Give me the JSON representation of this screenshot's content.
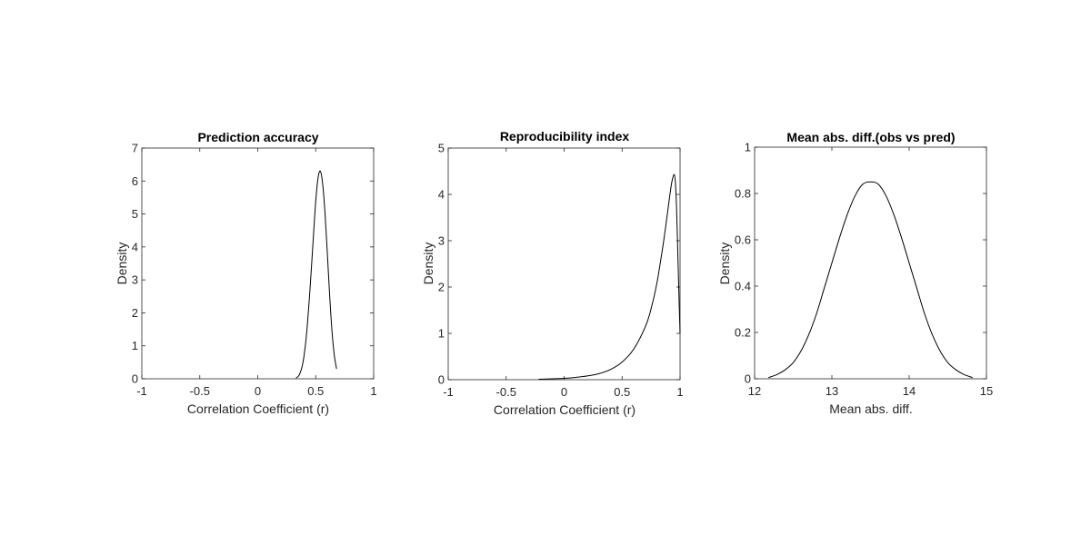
{
  "chart_data": [
    {
      "type": "line",
      "title": "Prediction accuracy",
      "xlabel": "Correlation Coefficient (r)",
      "ylabel": "Density",
      "xlim": [
        -1,
        1
      ],
      "ylim": [
        0,
        7
      ],
      "xticks": [
        -1,
        -0.5,
        0,
        0.5,
        1
      ],
      "xtick_labels": [
        "-1",
        "-0.5",
        "0",
        "0.5",
        "1"
      ],
      "yticks": [
        0,
        1,
        2,
        3,
        4,
        5,
        6,
        7
      ],
      "ytick_labels": [
        "0",
        "1",
        "2",
        "3",
        "4",
        "5",
        "6",
        "7"
      ],
      "grid": false,
      "series": [
        {
          "x": [
            0.33,
            0.36,
            0.39,
            0.42,
            0.45,
            0.48,
            0.5,
            0.52,
            0.54,
            0.56,
            0.58,
            0.6,
            0.62,
            0.64,
            0.66,
            0.68
          ],
          "y": [
            0.02,
            0.13,
            0.49,
            1.32,
            2.68,
            4.31,
            5.38,
            6.09,
            6.3,
            5.91,
            5.04,
            3.83,
            2.55,
            1.47,
            0.72,
            0.3
          ]
        }
      ]
    },
    {
      "type": "line",
      "title": "Reproducibility index",
      "xlabel": "Correlation Coefficient (r)",
      "ylabel": "Density",
      "xlim": [
        -1,
        1
      ],
      "ylim": [
        0,
        5
      ],
      "xticks": [
        -1,
        -0.5,
        0,
        0.5,
        1
      ],
      "xtick_labels": [
        "-1",
        "-0.5",
        "0",
        "0.5",
        "1"
      ],
      "yticks": [
        0,
        1,
        2,
        3,
        4,
        5
      ],
      "ytick_labels": [
        "0",
        "1",
        "2",
        "3",
        "4",
        "5"
      ],
      "grid": false,
      "series": [
        {
          "x": [
            -0.22,
            -0.1,
            0.0,
            0.1,
            0.2,
            0.3,
            0.4,
            0.5,
            0.6,
            0.7,
            0.75,
            0.8,
            0.85,
            0.88,
            0.91,
            0.93,
            0.95,
            0.96,
            0.97,
            0.98,
            0.99,
            1.0
          ],
          "y": [
            0.01,
            0.02,
            0.03,
            0.05,
            0.08,
            0.13,
            0.22,
            0.38,
            0.66,
            1.14,
            1.53,
            2.08,
            2.85,
            3.38,
            3.95,
            4.28,
            4.43,
            4.25,
            3.7,
            2.8,
            1.85,
            1.0
          ]
        }
      ]
    },
    {
      "type": "line",
      "title": "Mean abs. diff.(obs vs pred)",
      "xlabel": "Mean abs. diff.",
      "ylabel": "Density",
      "xlim": [
        12,
        15
      ],
      "ylim": [
        0,
        1
      ],
      "xticks": [
        12,
        13,
        14,
        15
      ],
      "xtick_labels": [
        "12",
        "13",
        "14",
        "15"
      ],
      "yticks": [
        0,
        0.2,
        0.4,
        0.6,
        0.8,
        1
      ],
      "ytick_labels": [
        "0",
        "0.2",
        "0.4",
        "0.6",
        "0.8",
        "1"
      ],
      "grid": false,
      "series": [
        {
          "x": [
            12.18,
            12.3,
            12.4,
            12.5,
            12.6,
            12.7,
            12.8,
            12.9,
            13.0,
            13.1,
            13.2,
            13.3,
            13.4,
            13.5,
            13.6,
            13.7,
            13.8,
            13.9,
            14.0,
            14.1,
            14.2,
            14.3,
            14.4,
            14.5,
            14.6,
            14.7,
            14.82
          ],
          "y": [
            0.005,
            0.02,
            0.04,
            0.07,
            0.12,
            0.19,
            0.28,
            0.39,
            0.5,
            0.61,
            0.71,
            0.79,
            0.84,
            0.85,
            0.84,
            0.79,
            0.71,
            0.61,
            0.5,
            0.39,
            0.28,
            0.19,
            0.12,
            0.07,
            0.04,
            0.02,
            0.005
          ]
        }
      ]
    }
  ]
}
